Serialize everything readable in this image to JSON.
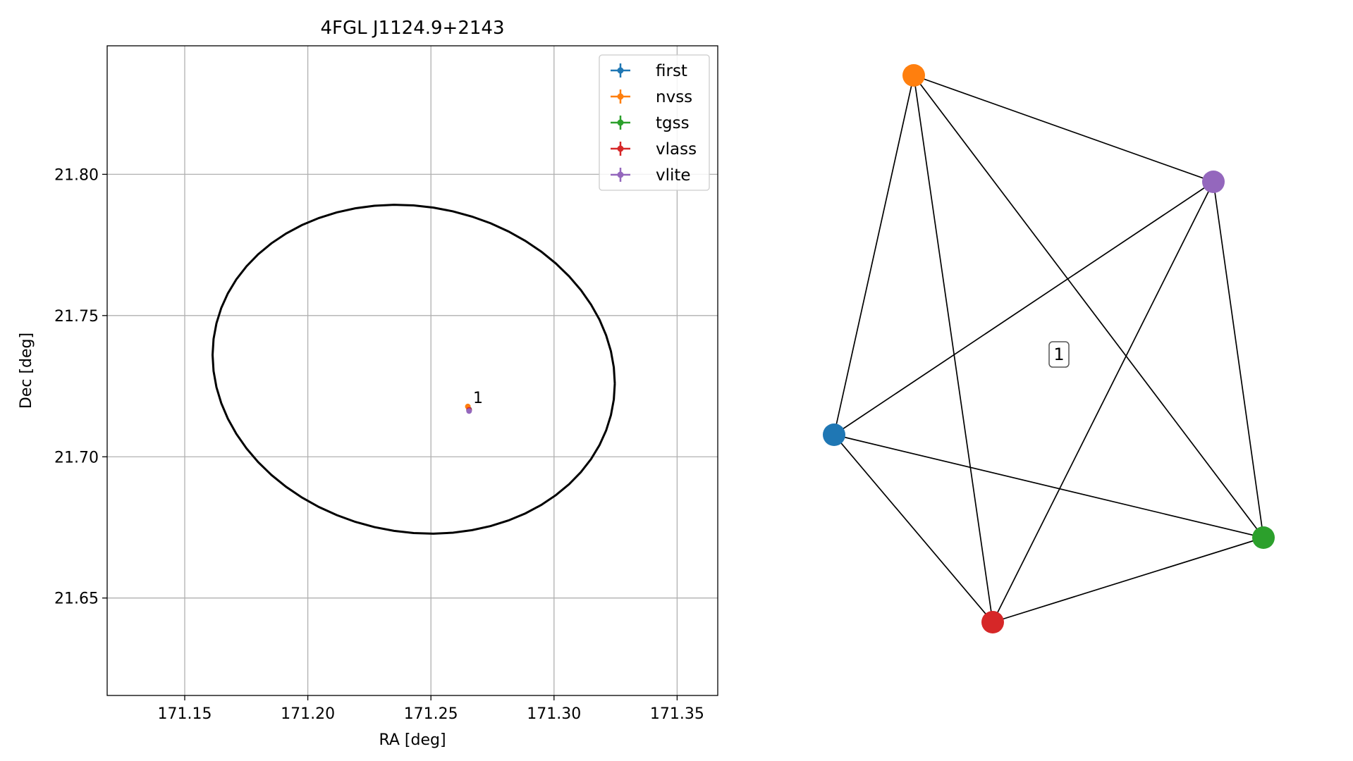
{
  "chart_data": [
    {
      "type": "scatter",
      "title": "4FGL J1124.9+2143",
      "xlabel": "RA [deg]",
      "ylabel": "Dec [deg]",
      "xlim": [
        171.1185,
        171.3665
      ],
      "ylim": [
        21.6155,
        21.8455
      ],
      "xticks": [
        171.15,
        171.2,
        171.25,
        171.3,
        171.35
      ],
      "xtick_labels": [
        "171.15",
        "171.20",
        "171.25",
        "171.30",
        "171.35"
      ],
      "yticks": [
        21.65,
        21.7,
        21.75,
        21.8
      ],
      "ytick_labels": [
        "21.65",
        "21.70",
        "21.75",
        "21.80"
      ],
      "grid": true,
      "legend_position": "top-right",
      "series": [
        {
          "name": "first",
          "color": "#1f77b4",
          "x": [
            171.2655
          ],
          "y": [
            21.7168
          ]
        },
        {
          "name": "nvss",
          "color": "#ff7f0e",
          "x": [
            171.265
          ],
          "y": [
            21.7178
          ]
        },
        {
          "name": "tgss",
          "color": "#2ca02c",
          "x": [
            171.2655
          ],
          "y": [
            21.7165
          ]
        },
        {
          "name": "vlass",
          "color": "#d62728",
          "x": [
            171.2655
          ],
          "y": [
            21.7166
          ]
        },
        {
          "name": "vlite",
          "color": "#9467bd",
          "x": [
            171.2655
          ],
          "y": [
            21.7162
          ]
        }
      ],
      "ellipse": {
        "color": "#000000",
        "center": [
          171.243,
          21.731
        ],
        "half_width_ra": 0.082,
        "half_height_dec": 0.058,
        "tilt_deg": -5
      },
      "annotations": [
        {
          "text": "1",
          "x": 171.266,
          "y": 21.7195
        }
      ]
    },
    {
      "type": "graph",
      "nodes": [
        {
          "id": "first",
          "color": "#1f77b4"
        },
        {
          "id": "nvss",
          "color": "#ff7f0e"
        },
        {
          "id": "tgss",
          "color": "#2ca02c"
        },
        {
          "id": "vlass",
          "color": "#d62728"
        },
        {
          "id": "vlite",
          "color": "#9467bd"
        }
      ],
      "edges": [
        [
          "first",
          "nvss"
        ],
        [
          "first",
          "tgss"
        ],
        [
          "first",
          "vlass"
        ],
        [
          "first",
          "vlite"
        ],
        [
          "nvss",
          "tgss"
        ],
        [
          "nvss",
          "vlass"
        ],
        [
          "nvss",
          "vlite"
        ],
        [
          "tgss",
          "vlass"
        ],
        [
          "tgss",
          "vlite"
        ],
        [
          "vlass",
          "vlite"
        ]
      ],
      "cluster_label": "1"
    }
  ]
}
